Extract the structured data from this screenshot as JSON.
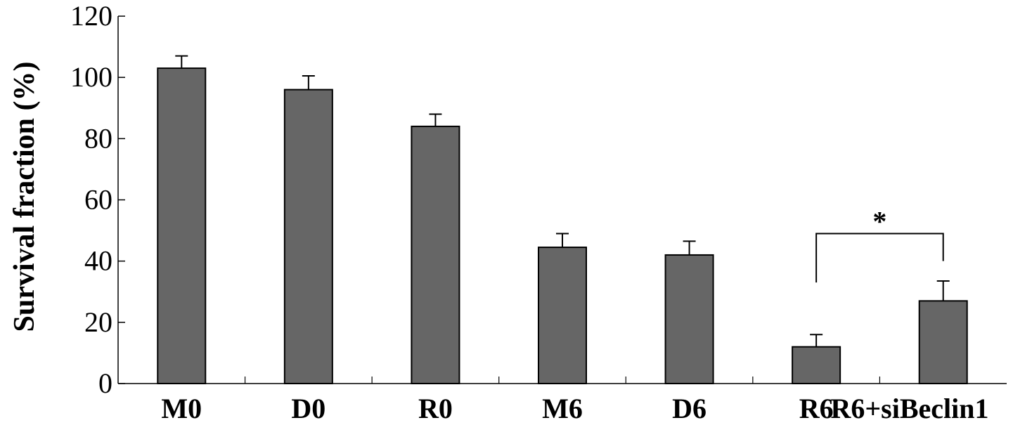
{
  "chart_data": {
    "type": "bar",
    "categories": [
      "M0",
      "D0",
      "R0",
      "M6",
      "D6",
      "R6",
      "R6+siBeclin1"
    ],
    "values": [
      103,
      96,
      84,
      44.5,
      42,
      12,
      27
    ],
    "errors": [
      4,
      4.5,
      4,
      4.5,
      4.5,
      4,
      6.5
    ],
    "ylabel": "Survival fraction (%)",
    "ylim": [
      0,
      120
    ],
    "yticks": [
      0,
      20,
      40,
      60,
      80,
      100,
      120
    ],
    "grid": false,
    "bar_color": "#666666",
    "annotations": [
      {
        "text": "*",
        "from": "R6",
        "to": "R6+siBeclin1"
      }
    ]
  }
}
